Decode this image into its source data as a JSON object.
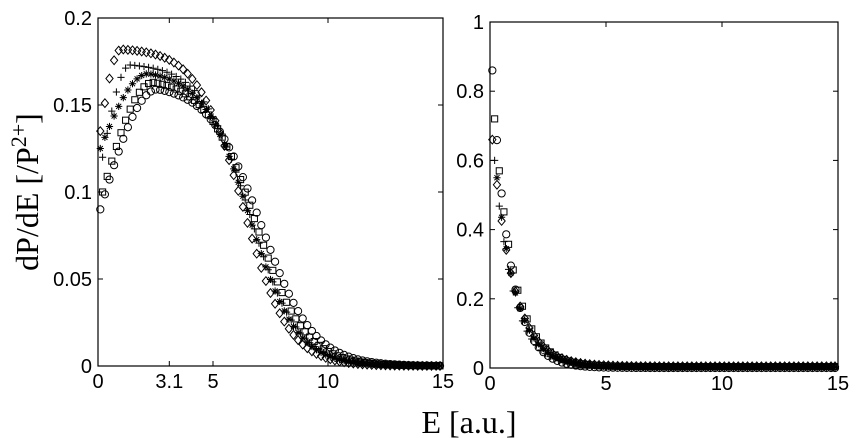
{
  "ylabel": "dP/dE [/P",
  "ylabel_sup": "2+",
  "ylabel_close": "]",
  "xlabel": "E [a.u.]",
  "chart_data": [
    {
      "type": "scatter",
      "xlim": [
        0,
        15
      ],
      "ylim": [
        0,
        0.2
      ],
      "xticks": [
        0,
        3.1,
        5,
        10,
        15
      ],
      "xtick_labels": [
        "0",
        "3.1",
        "5",
        "10",
        "15"
      ],
      "yticks": [
        0,
        0.05,
        0.1,
        0.15,
        0.2
      ],
      "ytick_labels": [
        "0",
        "0.05",
        "0.1",
        "0.15",
        "0.2"
      ],
      "grid": false,
      "series": [
        {
          "marker": "diamond",
          "mode": "rise_fall",
          "x0": 0.1,
          "y0": 0.135,
          "xpeak": 1.0,
          "ypeak": 0.182,
          "xhalf": 6.3,
          "width": 1.8,
          "step": 0.2
        },
        {
          "marker": "plus",
          "mode": "rise_fall",
          "x0": 0.2,
          "y0": 0.12,
          "xpeak": 1.4,
          "ypeak": 0.173,
          "xhalf": 6.6,
          "width": 1.9,
          "step": 0.2
        },
        {
          "marker": "asterisk",
          "mode": "rise_fall",
          "x0": 0.1,
          "y0": 0.125,
          "xpeak": 2.2,
          "ypeak": 0.168,
          "xhalf": 6.6,
          "width": 1.85,
          "step": 0.2
        },
        {
          "marker": "square",
          "mode": "rise_fall",
          "x0": 0.2,
          "y0": 0.1,
          "xpeak": 2.4,
          "ypeak": 0.163,
          "xhalf": 6.85,
          "width": 1.95,
          "step": 0.2
        },
        {
          "marker": "circle",
          "mode": "rise_fall",
          "x0": 0.1,
          "y0": 0.09,
          "xpeak": 2.6,
          "ypeak": 0.159,
          "xhalf": 7.1,
          "width": 2.05,
          "step": 0.2
        }
      ]
    },
    {
      "type": "scatter",
      "xlim": [
        0,
        15
      ],
      "ylim": [
        0,
        1
      ],
      "xticks": [
        0,
        5,
        10,
        15
      ],
      "xtick_labels": [
        "0",
        "5",
        "10",
        "15"
      ],
      "yticks": [
        0,
        0.2,
        0.4,
        0.6,
        0.8,
        1
      ],
      "ytick_labels": [
        "0",
        "0.2",
        "0.4",
        "0.6",
        "0.8",
        "1"
      ],
      "grid": false,
      "series": [
        {
          "marker": "circle",
          "mode": "decay",
          "x0": 0.1,
          "y0": 0.86,
          "tau": 0.75,
          "tail": 0.0,
          "step": 0.2
        },
        {
          "marker": "square",
          "mode": "decay",
          "x0": 0.2,
          "y0": 0.72,
          "tau": 0.85,
          "tail": 0.004,
          "step": 0.2
        },
        {
          "marker": "diamond",
          "mode": "decay",
          "x0": 0.1,
          "y0": 0.66,
          "tau": 0.9,
          "tail": 0.005,
          "step": 0.2
        },
        {
          "marker": "asterisk",
          "mode": "decay",
          "x0": 0.3,
          "y0": 0.55,
          "tau": 0.85,
          "tail": 0.004,
          "step": 0.2
        },
        {
          "marker": "plus",
          "mode": "decay",
          "x0": 0.2,
          "y0": 0.6,
          "tau": 0.8,
          "tail": 0.003,
          "step": 0.2
        }
      ]
    }
  ]
}
